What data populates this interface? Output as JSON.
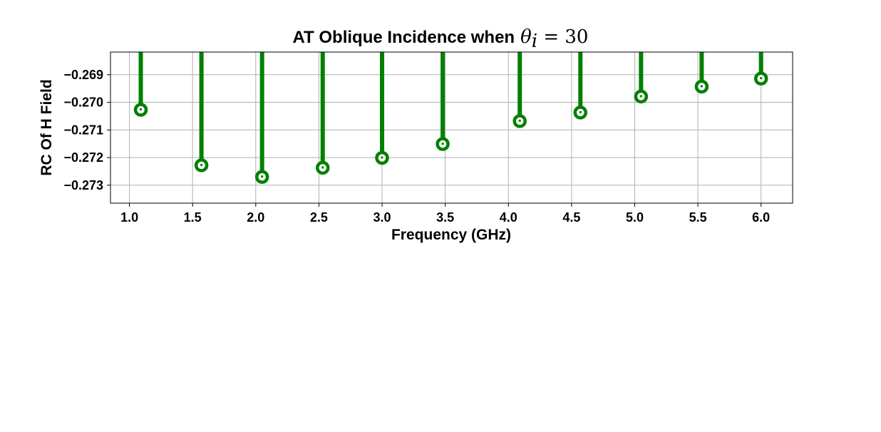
{
  "chart_data": {
    "type": "stem",
    "title": "AT Oblique Incidence when",
    "title_math": "θ",
    "title_math_sub": "i",
    "title_math_rest": " = 30",
    "xlabel": "Frequency (GHz)",
    "ylabel": "RC Of H Field",
    "x_ticks": [
      "1.0",
      "1.5",
      "2.0",
      "2.5",
      "3.0",
      "3.5",
      "4.0",
      "4.5",
      "5.0",
      "5.5",
      "6.0"
    ],
    "y_ticks": [
      "−0.269",
      "−0.270",
      "−0.271",
      "−0.272",
      "−0.273"
    ],
    "x_tick_values": [
      1.0,
      1.5,
      2.0,
      2.5,
      3.0,
      3.5,
      4.0,
      4.5,
      5.0,
      5.5,
      6.0
    ],
    "y_tick_values": [
      -0.269,
      -0.27,
      -0.271,
      -0.272,
      -0.273
    ],
    "xlim": [
      0.85,
      6.25
    ],
    "ylim": [
      -0.27365,
      -0.26818
    ],
    "grid": true,
    "baseline": 0,
    "series": [
      {
        "color": "#008000",
        "x": [
          1.09,
          1.57,
          2.05,
          2.53,
          3.0,
          3.48,
          4.09,
          4.57,
          5.05,
          5.53,
          6.0
        ],
        "y": [
          -0.27027,
          -0.27228,
          -0.2727,
          -0.27237,
          -0.27201,
          -0.27151,
          -0.27068,
          -0.27037,
          -0.26979,
          -0.26943,
          -0.26914
        ]
      }
    ]
  }
}
